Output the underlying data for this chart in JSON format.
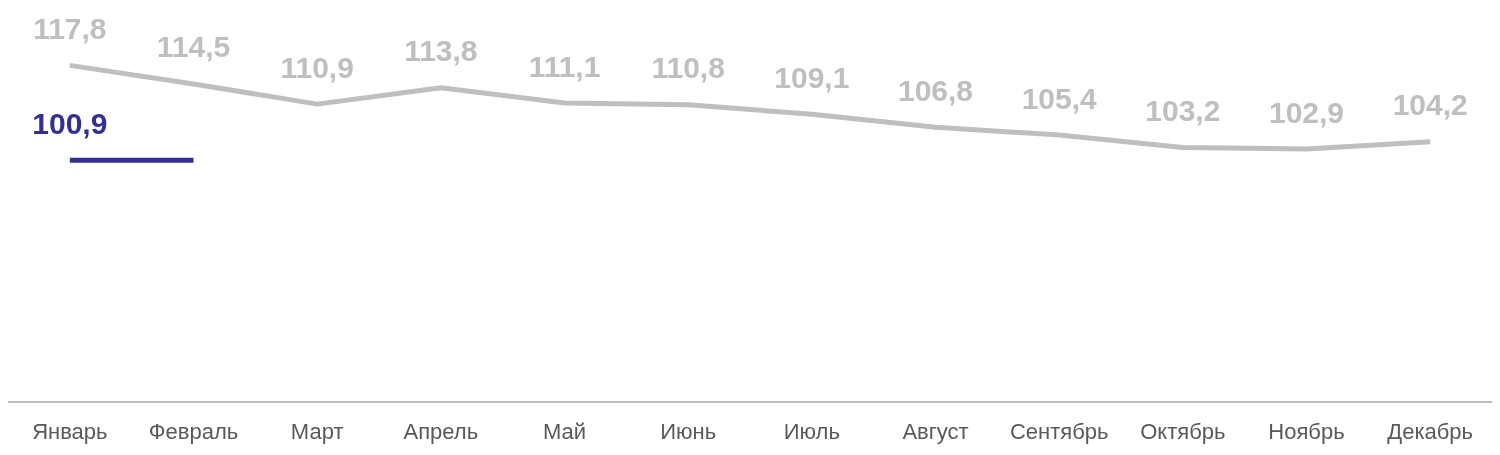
{
  "chart_data": {
    "type": "line",
    "categories": [
      "Январь",
      "Февраль",
      "Март",
      "Апрель",
      "Май",
      "Июнь",
      "Июль",
      "Август",
      "Сентябрь",
      "Октябрь",
      "Ноябрь",
      "Декабрь"
    ],
    "grid": false,
    "tick_labels": "x",
    "series": [
      {
        "color": "#bfbfbf",
        "values": [
          117.8,
          114.5,
          110.9,
          113.8,
          111.1,
          110.8,
          109.1,
          106.8,
          105.4,
          103.2,
          102.9,
          104.2
        ],
        "value_labels": [
          "117,8",
          "114,5",
          "110,9",
          "113,8",
          "111,1",
          "110,8",
          "109,1",
          "106,8",
          "105,4",
          "103,2",
          "102,9",
          "104,2"
        ]
      },
      {
        "color": "#33308f",
        "values": [
          100.9,
          100.9,
          null,
          null,
          null,
          null,
          null,
          null,
          null,
          null,
          null,
          null
        ],
        "value_labels": [
          "100,9",
          null,
          null,
          null,
          null,
          null,
          null,
          null,
          null,
          null,
          null,
          null
        ]
      }
    ]
  }
}
